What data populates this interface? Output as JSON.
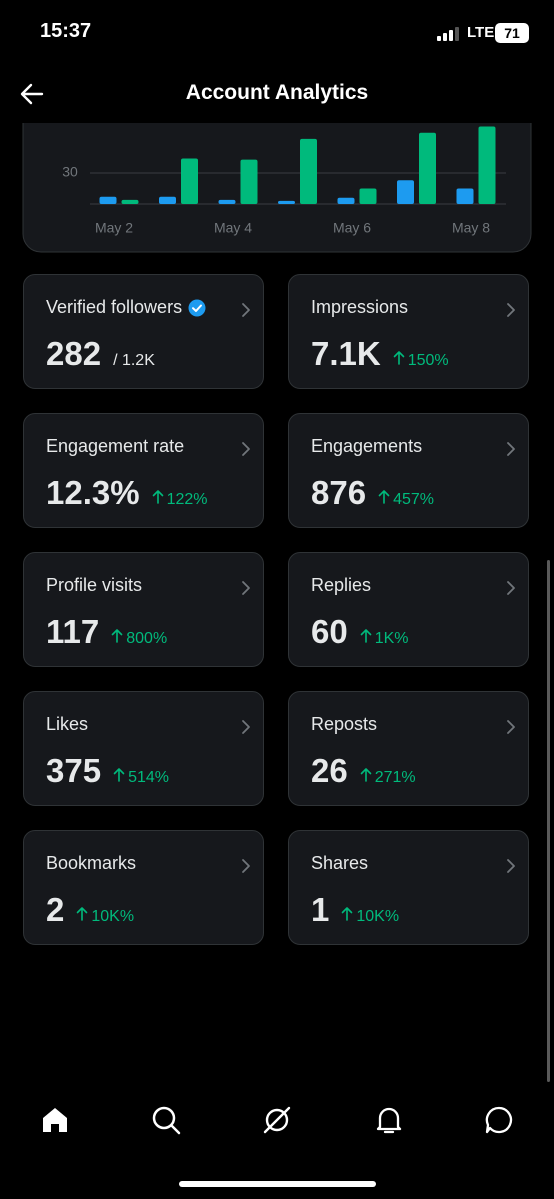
{
  "status_bar": {
    "time": "15:37",
    "network": "LTE",
    "battery": "71"
  },
  "header": {
    "title": "Account Analytics"
  },
  "chart": {
    "type": "bar",
    "categories": [
      "May 2",
      null,
      "May 4",
      null,
      "May 6",
      null,
      "May 8"
    ],
    "series": [
      {
        "color": "#1d9bf0",
        "values": [
          7,
          7,
          4,
          3,
          6,
          23,
          15
        ]
      },
      {
        "color": "#00ba7c",
        "values": [
          4,
          44,
          43,
          63,
          15,
          69,
          75
        ]
      }
    ],
    "ylim": [
      0,
      80
    ],
    "yticks": [
      30
    ],
    "grid": true
  },
  "metrics": [
    {
      "label": "Verified followers",
      "verified": true,
      "value": "282",
      "total": "/ 1.2K"
    },
    {
      "label": "Impressions",
      "value": "7.1K",
      "change": "150%"
    },
    {
      "label": "Engagement rate",
      "value": "12.3%",
      "change": "122%"
    },
    {
      "label": "Engagements",
      "value": "876",
      "change": "457%"
    },
    {
      "label": "Profile visits",
      "value": "117",
      "change": "800%"
    },
    {
      "label": "Replies",
      "value": "60",
      "change": "1K%"
    },
    {
      "label": "Likes",
      "value": "375",
      "change": "514%"
    },
    {
      "label": "Reposts",
      "value": "26",
      "change": "271%"
    },
    {
      "label": "Bookmarks",
      "value": "2",
      "change": "10K%"
    },
    {
      "label": "Shares",
      "value": "1",
      "change": "10K%"
    }
  ]
}
